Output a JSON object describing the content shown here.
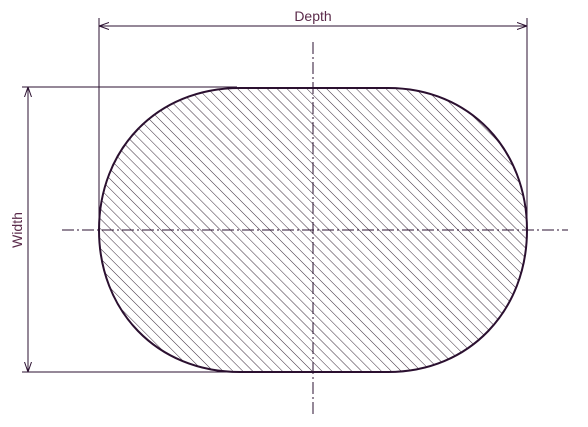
{
  "diagram": {
    "labels": {
      "depth": "Depth",
      "width": "Width"
    },
    "colors": {
      "outline": "#2b1030",
      "hatch": "#3a2a3a",
      "dimension_line": "#2b1030",
      "label_text": "#5a2a4a",
      "centerline": "#2b1030",
      "background": "#ffffff"
    }
  }
}
